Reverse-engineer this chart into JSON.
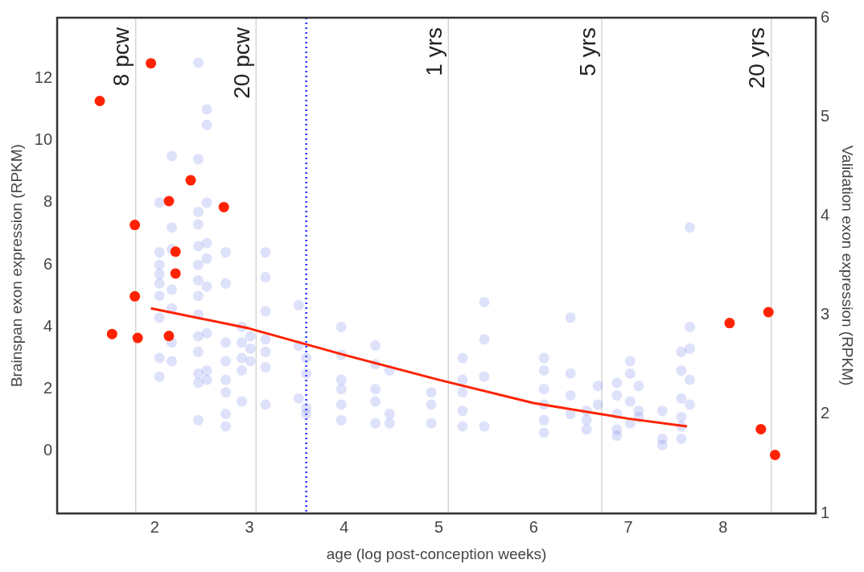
{
  "chart_data": {
    "type": "scatter",
    "xlabel": "age (log post-conception weeks)",
    "ylabel": "Brainspan exon expression (RPKM)",
    "y2label": "Validation exon expression (RPKM)",
    "xlim": [
      0.97,
      8.98
    ],
    "xticks": [
      2,
      3,
      4,
      5,
      6,
      7,
      8
    ],
    "ylim": [
      -2.0,
      13.95
    ],
    "yticks": [
      0,
      2,
      4,
      6,
      8,
      10,
      12
    ],
    "y2lim": [
      1,
      6
    ],
    "y2ticks": [
      1,
      2,
      3,
      4,
      5,
      6
    ],
    "grid": false,
    "legend": false,
    "marker": "circle",
    "ref_lines": [
      {
        "axis": "x",
        "value": 1.8,
        "label": "8 pcw",
        "color": "#cccccc",
        "line_style": "solid"
      },
      {
        "axis": "x",
        "value": 3.07,
        "label": "20 pcw",
        "color": "#cccccc",
        "line_style": "solid"
      },
      {
        "axis": "x",
        "value": 5.1,
        "label": "1 yrs",
        "color": "#cccccc",
        "line_style": "solid"
      },
      {
        "axis": "x",
        "value": 6.72,
        "label": "5 yrs",
        "color": "#cccccc",
        "line_style": "solid"
      },
      {
        "axis": "x",
        "value": 8.51,
        "label": "20 yrs",
        "color": "#cccccc",
        "line_style": "solid"
      },
      {
        "axis": "x",
        "value": 3.6,
        "label": null,
        "color": "#2233ff",
        "line_style": "dotted"
      }
    ],
    "series": [
      {
        "color": "#5a6ae6",
        "x": [
          2.05,
          2.05,
          2.05,
          2.05,
          2.05,
          2.05,
          2.05,
          2.05,
          2.05,
          2.18,
          2.18,
          2.18,
          2.18,
          2.18,
          2.18,
          2.18,
          2.46,
          2.46,
          2.46,
          2.46,
          2.46,
          2.46,
          2.46,
          2.46,
          2.46,
          2.46,
          2.46,
          2.46,
          2.46,
          2.46,
          2.55,
          2.55,
          2.55,
          2.55,
          2.55,
          2.55,
          2.55,
          2.55,
          2.55,
          2.75,
          2.75,
          2.75,
          2.75,
          2.75,
          2.75,
          2.75,
          2.75,
          2.92,
          2.92,
          2.92,
          2.92,
          2.92,
          3.01,
          3.01,
          3.01,
          3.17,
          3.17,
          3.17,
          3.17,
          3.17,
          3.17,
          3.17,
          3.52,
          3.52,
          3.52,
          3.6,
          3.6,
          3.6,
          3.6,
          3.97,
          3.97,
          3.97,
          3.97,
          3.97,
          3.97,
          4.33,
          4.33,
          4.33,
          4.33,
          4.33,
          4.48,
          4.48,
          4.48,
          4.92,
          4.92,
          4.92,
          5.25,
          5.25,
          5.25,
          5.25,
          5.25,
          5.48,
          5.48,
          5.48,
          5.48,
          6.11,
          6.11,
          6.11,
          6.11,
          6.11,
          6.11,
          6.39,
          6.39,
          6.39,
          6.39,
          6.56,
          6.56,
          6.56,
          6.68,
          6.68,
          6.88,
          6.88,
          6.88,
          6.88,
          6.88,
          7.02,
          7.02,
          7.02,
          7.02,
          7.11,
          7.11,
          7.11,
          7.36,
          7.36,
          7.36,
          7.56,
          7.56,
          7.56,
          7.56,
          7.56,
          7.56,
          7.65,
          7.65,
          7.65,
          7.65,
          7.65
        ],
        "values": [
          8,
          6.4,
          6,
          5.7,
          5.4,
          5,
          4.3,
          3,
          2.4,
          9.5,
          7.2,
          6.5,
          5.2,
          4.6,
          3.5,
          2.9,
          12.5,
          9.4,
          7.7,
          7.3,
          6.6,
          6,
          5.5,
          5,
          4.4,
          3.7,
          3.2,
          2.5,
          2.2,
          1,
          11,
          10.5,
          8,
          6.7,
          6.2,
          5.3,
          3.8,
          2.6,
          2.3,
          6.4,
          5.4,
          3.5,
          2.9,
          2.3,
          1.9,
          1.2,
          0.8,
          4,
          3.5,
          3,
          2.6,
          1.6,
          3.7,
          3.3,
          2.9,
          6.4,
          5.6,
          4.5,
          3.6,
          3.2,
          2.7,
          1.5,
          4.7,
          3.4,
          1.7,
          3,
          2.5,
          1.4,
          1.2,
          4,
          3.1,
          2.3,
          2,
          1.5,
          1,
          3.4,
          2.8,
          2,
          1.6,
          0.9,
          2.6,
          1.2,
          0.9,
          1.9,
          1.5,
          0.9,
          3,
          2.3,
          1.9,
          1.3,
          0.8,
          4.8,
          3.6,
          2.4,
          0.8,
          3,
          2.6,
          2,
          1.5,
          1,
          0.6,
          4.3,
          2.5,
          1.8,
          1.2,
          1.3,
          1,
          0.7,
          2.1,
          1.5,
          2.2,
          1.8,
          1.2,
          0.7,
          0.5,
          2.9,
          2.5,
          1.6,
          0.9,
          2.1,
          1.3,
          1.1,
          1.3,
          0.4,
          0.2,
          3.2,
          2.6,
          1.7,
          1.1,
          0.8,
          0.4,
          7.2,
          4,
          3.3,
          2.3,
          1.5
        ]
      },
      {
        "type": "line",
        "color": "#ff2200",
        "marker": "none",
        "x": [
          1.96,
          3,
          4,
          5,
          6,
          7,
          7.62
        ],
        "values": [
          4.6,
          3.95,
          3.1,
          2.3,
          1.55,
          1.05,
          0.8
        ]
      },
      {
        "color": "#ff2200",
        "axis": "y2",
        "x": [
          1.42,
          1.96,
          1.55,
          1.79,
          1.79,
          1.82,
          2.15,
          2.38,
          2.22,
          2.22,
          2.15,
          2.73,
          8.07,
          8.48,
          8.4,
          8.55
        ],
        "values": [
          5.16,
          5.54,
          2.81,
          3.91,
          3.19,
          2.77,
          4.15,
          4.36,
          3.64,
          3.42,
          2.79,
          4.09,
          2.92,
          3.03,
          1.85,
          1.59
        ]
      }
    ]
  }
}
